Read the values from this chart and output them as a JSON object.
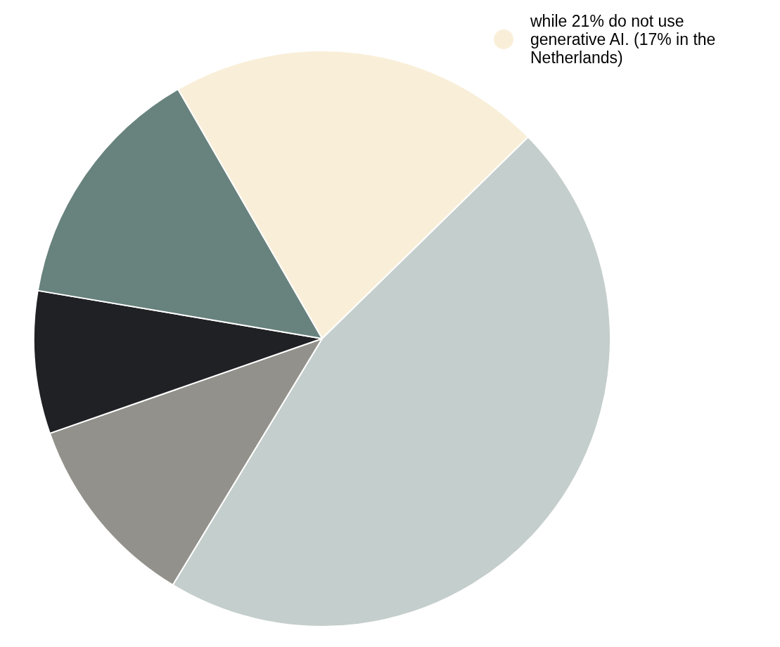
{
  "chart_data": {
    "type": "pie",
    "categories": [
      "while 21% do not use generative AI. (17% in the Netherlands)",
      null,
      null,
      null,
      null
    ],
    "values": [
      21,
      46,
      11,
      8,
      14
    ],
    "colors": [
      "#f9efd9",
      "#c4cecc",
      "#93918b",
      "#202124",
      "#68827d"
    ],
    "legend": "top right"
  }
}
